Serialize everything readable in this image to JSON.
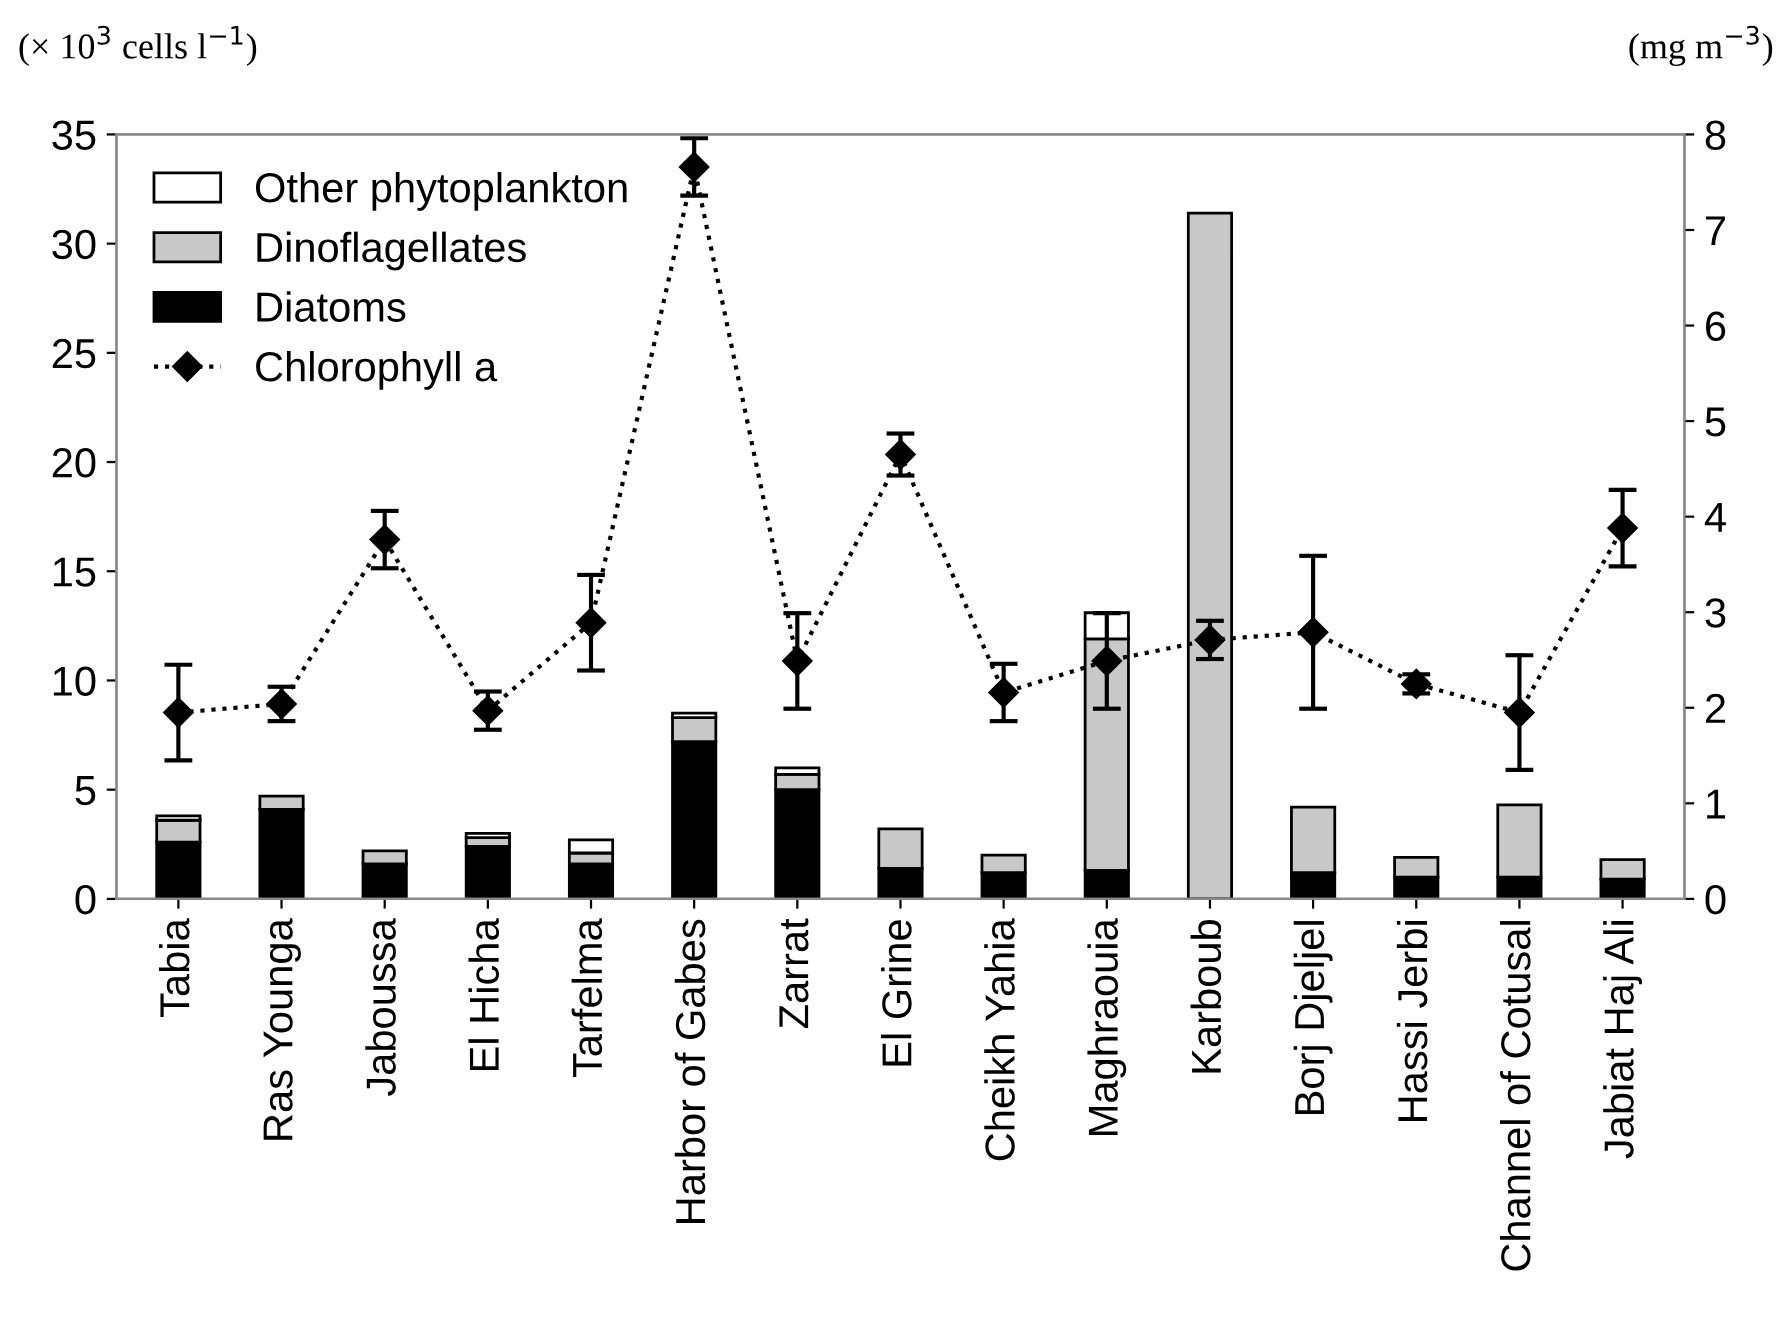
{
  "chart_data": {
    "type": "bar",
    "stacked": true,
    "ylabel": "(× 10$^{3}$ cells l$^{−1}$)",
    "y2label": "(mg m$^{−3}$)",
    "categories": [
      "Tabia",
      "Ras Younga",
      "Jaboussa",
      "El Hicha",
      "Tarfelma",
      "Harbor of Gabes",
      "Zarrat",
      "El Grine",
      "Cheikh Yahia",
      "Maghraouia",
      "Karboub",
      "Borj Djeljel",
      "Hassi Jerbi",
      "Channel of Cotusal",
      "Jabiat Haj Ali"
    ],
    "series": [
      {
        "name": "Diatoms",
        "color": "#000000",
        "values": [
          2.6,
          4.1,
          1.6,
          2.4,
          1.6,
          7.2,
          5.0,
          1.4,
          1.2,
          1.3,
          0,
          1.2,
          1.0,
          1.0,
          0.9
        ]
      },
      {
        "name": "Dinoflagellates",
        "color": "#c8c8c8",
        "values": [
          1.0,
          0.6,
          0.6,
          0.4,
          0.5,
          1.1,
          0.7,
          1.8,
          0.8,
          10.6,
          31.4,
          3.0,
          0.9,
          3.3,
          0.9
        ]
      },
      {
        "name": "Other phytoplankton",
        "color": "#ffffff",
        "values": [
          0.2,
          0,
          0,
          0.2,
          0.6,
          0.2,
          0.3,
          0,
          0,
          1.2,
          0,
          0,
          0,
          0,
          0
        ]
      },
      {
        "name": "Chlorophyll a",
        "type": "line",
        "axis": "y2",
        "color": "#000000",
        "marker": "diamond",
        "line_style": "dotted",
        "values": [
          1.95,
          2.04,
          3.76,
          1.97,
          2.89,
          7.66,
          2.49,
          4.65,
          2.16,
          2.49,
          2.71,
          2.79,
          2.25,
          1.95,
          3.88
        ],
        "errors": [
          0.5,
          0.18,
          0.3,
          0.2,
          0.5,
          0.3,
          0.5,
          0.22,
          0.3,
          0.5,
          0.2,
          0.8,
          0.1,
          0.6,
          0.4
        ]
      }
    ],
    "ylim": [
      0,
      35
    ],
    "yticks": [
      0,
      5,
      10,
      15,
      20,
      25,
      30,
      35
    ],
    "y2lim": [
      0,
      8
    ],
    "y2ticks": [
      0,
      1,
      2,
      3,
      4,
      5,
      6,
      7,
      8
    ],
    "grid": false,
    "legend": "top left"
  }
}
